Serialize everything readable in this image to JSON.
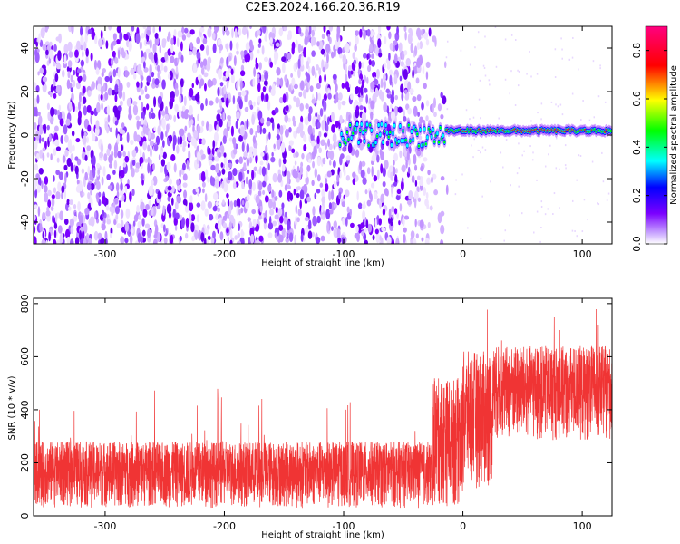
{
  "title": "C2E3.2024.166.20.36.R19",
  "chart_data": [
    {
      "type": "heatmap",
      "xlabel": "Height of straight line (km)",
      "ylabel": "Frequency (Hz)",
      "xlim": [
        -360,
        125
      ],
      "ylim": [
        -50,
        50
      ],
      "xticks": [
        -300,
        -200,
        -100,
        0,
        100
      ],
      "yticks": [
        -40,
        -20,
        0,
        20,
        40
      ],
      "colorbar": {
        "label": "Normalized spectral amplitude",
        "range": [
          0.0,
          0.9
        ],
        "ticks": [
          0.0,
          0.2,
          0.4,
          0.6,
          0.8
        ],
        "colors": [
          "#ffffff",
          "#7b00ff",
          "#0000ff",
          "#00ffff",
          "#00ff00",
          "#ffff00",
          "#ff0000",
          "#ff007f"
        ]
      },
      "description": "broadband noise across all frequencies below ~-15 km; narrow signal line near 0 Hz from ~-100 km onward, strongest (~0.9) around 50-90 km"
    },
    {
      "type": "line",
      "xlabel": "Height of straight line (km)",
      "ylabel": "SNR (10 * v/v)",
      "xlim": [
        -360,
        125
      ],
      "ylim": [
        0,
        820
      ],
      "xticks": [
        -300,
        -200,
        -100,
        0,
        100
      ],
      "yticks": [
        0,
        200,
        400,
        600,
        800
      ],
      "color": "#f03434",
      "segments": [
        {
          "x_start": -360,
          "x_end": -25,
          "low": 30,
          "high": 280,
          "peak": 480
        },
        {
          "x_start": -25,
          "x_end": 0,
          "low": 30,
          "high": 520,
          "peak": 780
        },
        {
          "x_start": 0,
          "x_end": 25,
          "low": 100,
          "high": 620,
          "peak": 820
        },
        {
          "x_start": 25,
          "x_end": 125,
          "low": 280,
          "high": 640,
          "peak": 800
        }
      ]
    }
  ]
}
